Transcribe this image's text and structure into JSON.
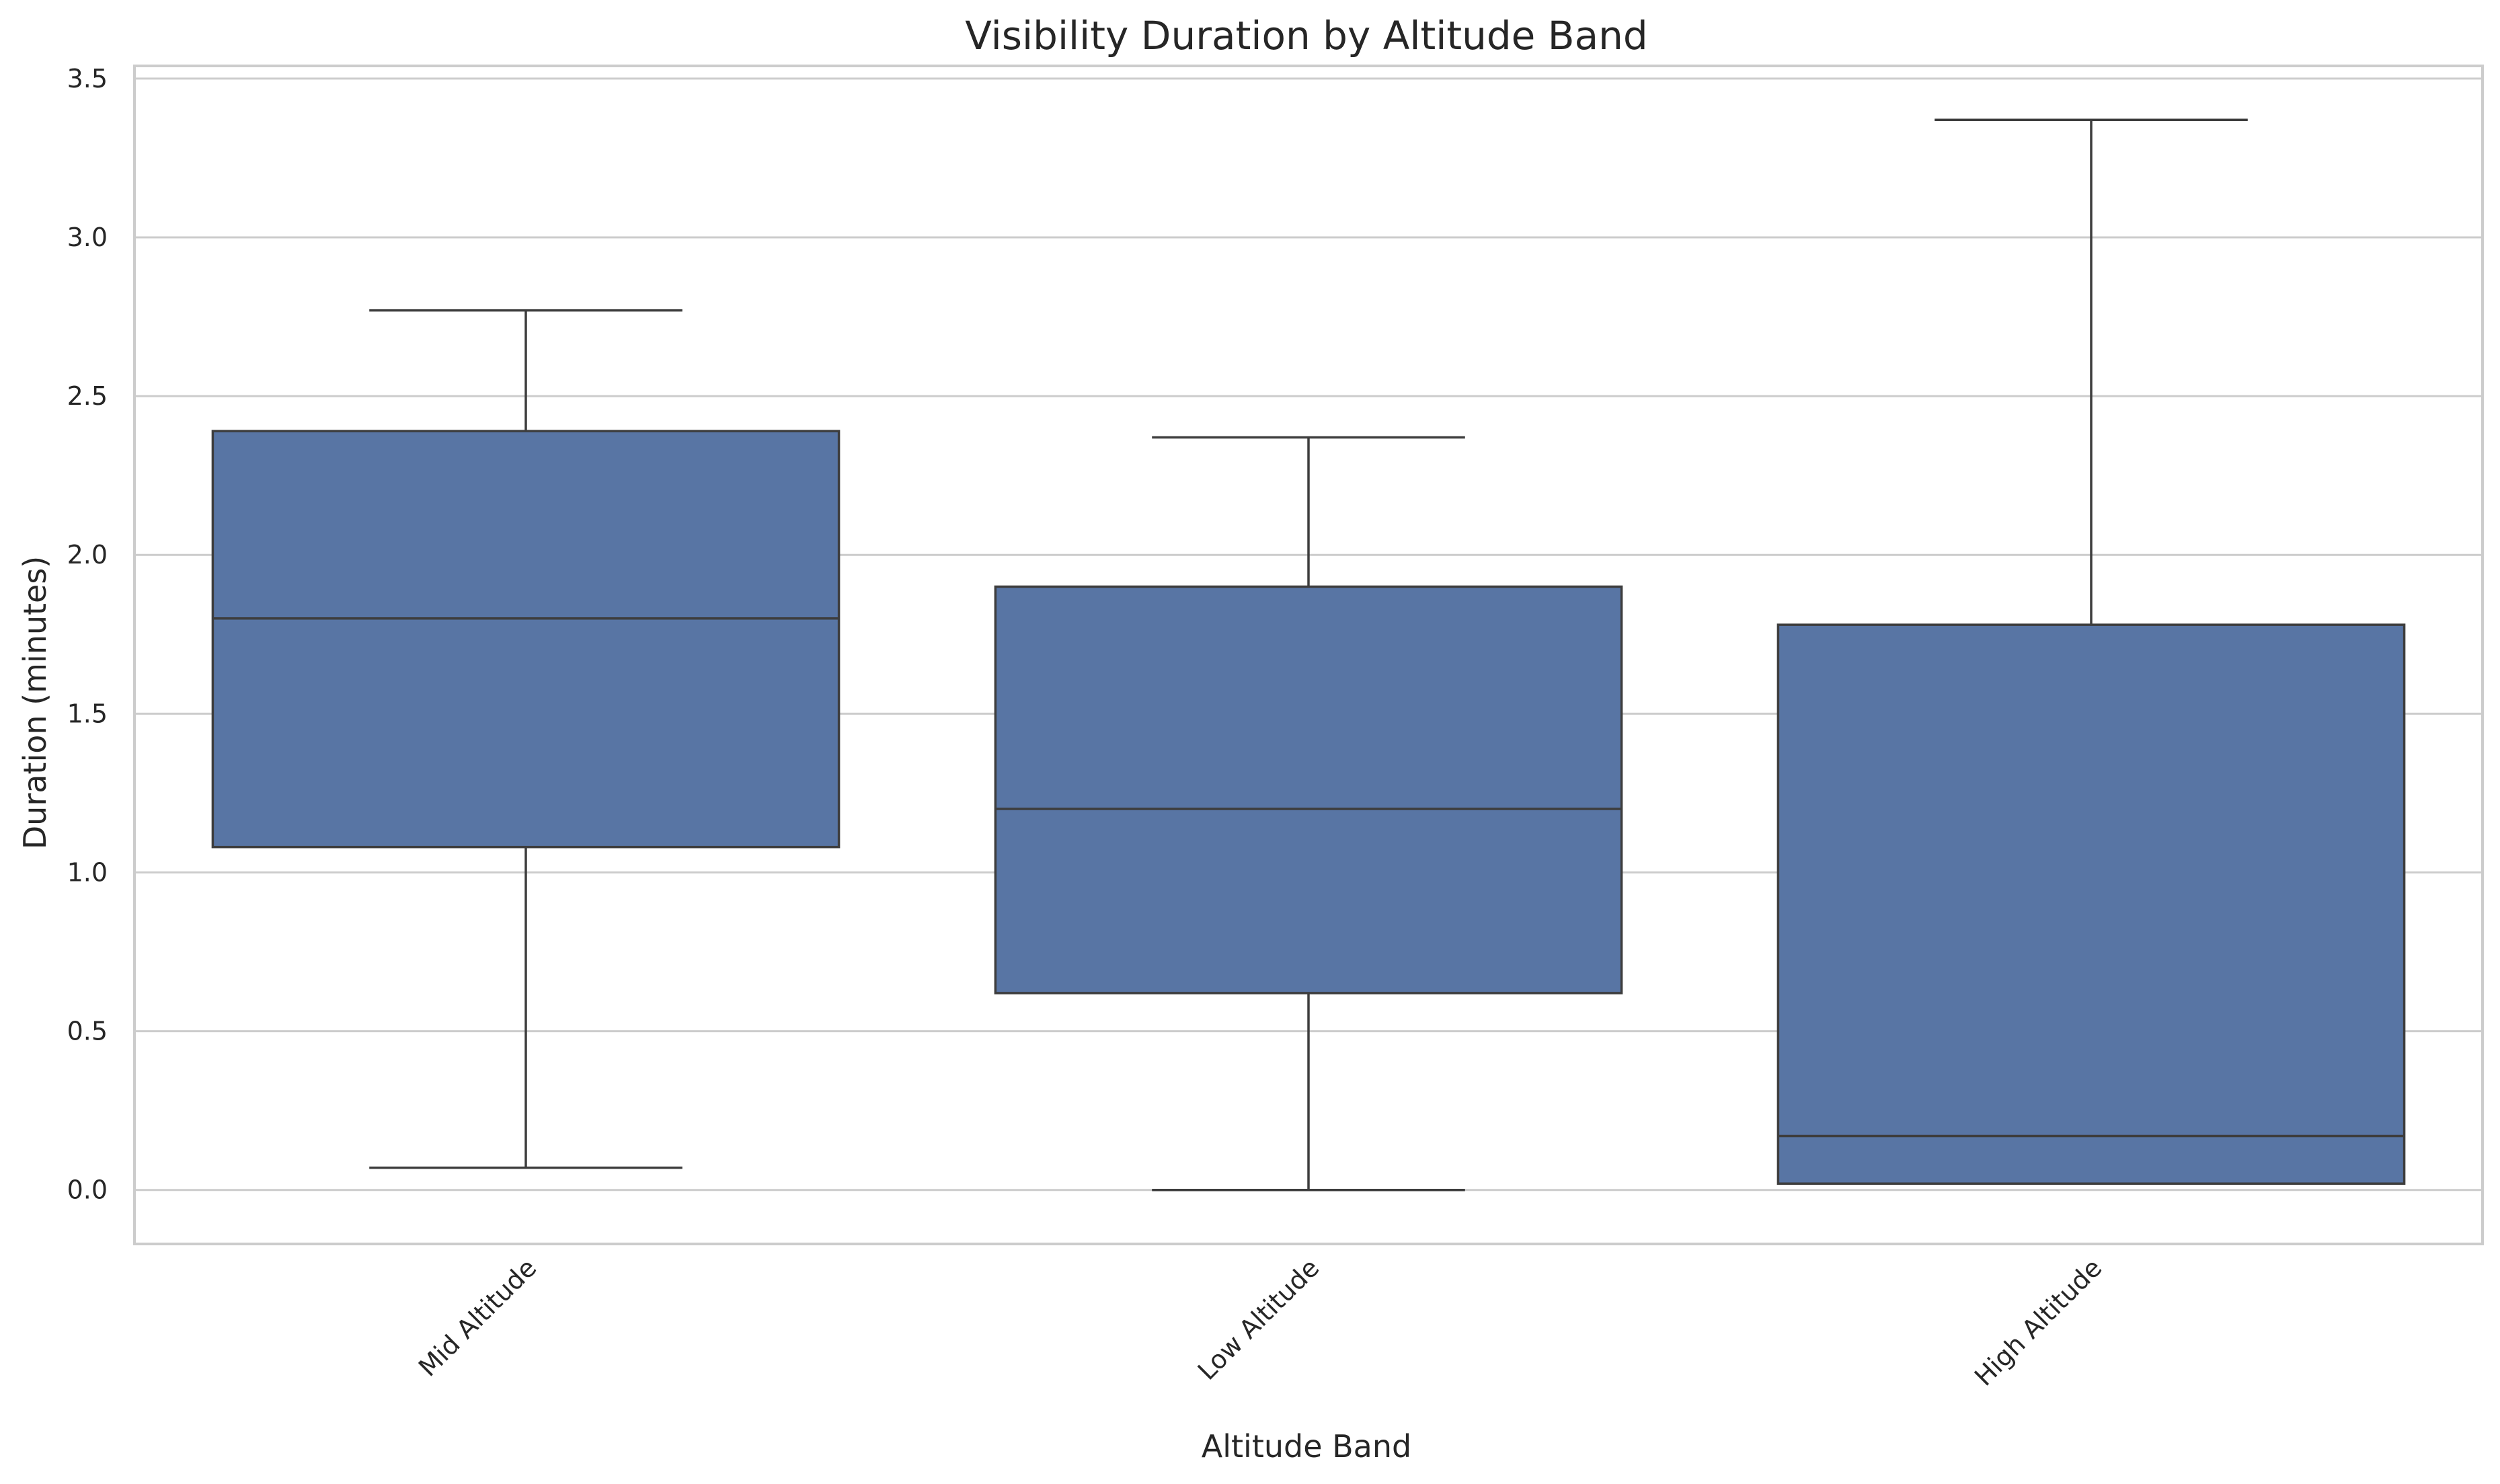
{
  "chart_data": {
    "type": "box",
    "title": "Visibility Duration by Altitude Band",
    "xlabel": "Altitude Band",
    "ylabel": "Duration (minutes)",
    "ylim": [
      -0.17,
      3.54
    ],
    "yticks": [
      0.0,
      0.5,
      1.0,
      1.5,
      2.0,
      2.5,
      3.0,
      3.5
    ],
    "ytick_labels": [
      "0.0",
      "0.5",
      "1.0",
      "1.5",
      "2.0",
      "2.5",
      "3.0",
      "3.5"
    ],
    "grid": true,
    "categories": [
      "Mid Altitude",
      "Low Altitude",
      "High Altitude"
    ],
    "boxes": [
      {
        "category": "Mid Altitude",
        "whisker_low": 0.07,
        "q1": 1.08,
        "median": 1.8,
        "q3": 2.39,
        "whisker_high": 2.77
      },
      {
        "category": "Low Altitude",
        "whisker_low": 0.0,
        "q1": 0.62,
        "median": 1.2,
        "q3": 1.9,
        "whisker_high": 2.37
      },
      {
        "category": "High Altitude",
        "whisker_low": 0.02,
        "q1": 0.02,
        "median": 0.17,
        "q3": 1.78,
        "whisker_high": 3.37
      }
    ],
    "colors": {
      "box_fill": "#5875a4",
      "box_edge": "#3d3d3d",
      "grid": "#cccccc",
      "spine": "#cccccc",
      "text": "#262626"
    }
  }
}
